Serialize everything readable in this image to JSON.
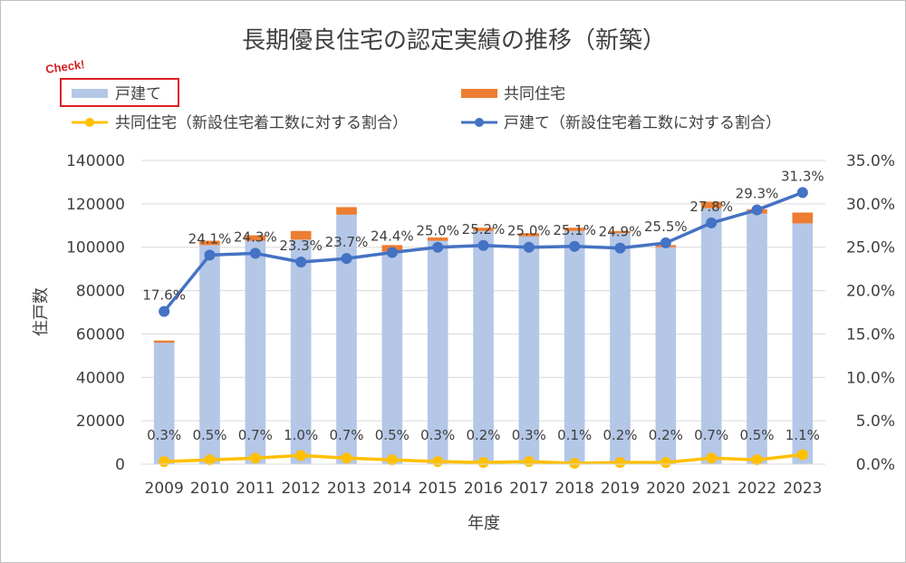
{
  "chart_data": {
    "type": "bar",
    "title": "長期優良住宅の認定実績の推移（新築）",
    "xlabel": "年度",
    "ylabel": "住戸数",
    "categories": [
      "2009",
      "2010",
      "2011",
      "2012",
      "2013",
      "2014",
      "2015",
      "2016",
      "2017",
      "2018",
      "2019",
      "2020",
      "2021",
      "2022",
      "2023"
    ],
    "ylim": [
      0,
      140000
    ],
    "y2lim": [
      0,
      35
    ],
    "y_ticks": [
      "0",
      "20000",
      "40000",
      "60000",
      "80000",
      "100000",
      "120000",
      "140000"
    ],
    "y2_ticks": [
      "0.0%",
      "5.0%",
      "10.0%",
      "15.0%",
      "20.0%",
      "25.0%",
      "30.0%",
      "35.0%"
    ],
    "grid": true,
    "legend_position": "top",
    "bar_series": [
      {
        "name": "戸建て",
        "color": "#b4c7e7",
        "values": [
          56000,
          101000,
          103000,
          103500,
          115000,
          98000,
          103000,
          107500,
          105000,
          107500,
          106500,
          100000,
          118000,
          115500,
          111000
        ]
      },
      {
        "name": "共同住宅",
        "color": "#ed7d31",
        "values": [
          1000,
          2000,
          2500,
          4000,
          3500,
          3000,
          1500,
          1500,
          1500,
          1500,
          1000,
          1000,
          3000,
          2000,
          5000
        ]
      }
    ],
    "line_series": [
      {
        "name": "共同住宅（新設住宅着工数に対する割合）",
        "color": "#ffc000",
        "values": [
          0.3,
          0.5,
          0.7,
          1.0,
          0.7,
          0.5,
          0.3,
          0.2,
          0.3,
          0.1,
          0.2,
          0.2,
          0.7,
          0.5,
          1.1
        ],
        "labels": [
          "0.3%",
          "0.5%",
          "0.7%",
          "1.0%",
          "0.7%",
          "0.5%",
          "0.3%",
          "0.2%",
          "0.3%",
          "0.1%",
          "0.2%",
          "0.2%",
          "0.7%",
          "0.5%",
          "1.1%"
        ]
      },
      {
        "name": "戸建て（新設住宅着工数に対する割合）",
        "color": "#4472c4",
        "values": [
          17.6,
          24.1,
          24.3,
          23.3,
          23.7,
          24.4,
          25.0,
          25.2,
          25.0,
          25.1,
          24.9,
          25.5,
          27.8,
          29.3,
          31.3
        ],
        "labels": [
          "17.6%",
          "24.1%",
          "24.3%",
          "23.3%",
          "23.7%",
          "24.4%",
          "25.0%",
          "25.2%",
          "25.0%",
          "25.1%",
          "24.9%",
          "25.5%",
          "27.8%",
          "29.3%",
          "31.3%"
        ]
      }
    ],
    "annotation": "Check!",
    "highlighted_legend_item": "戸建て"
  }
}
